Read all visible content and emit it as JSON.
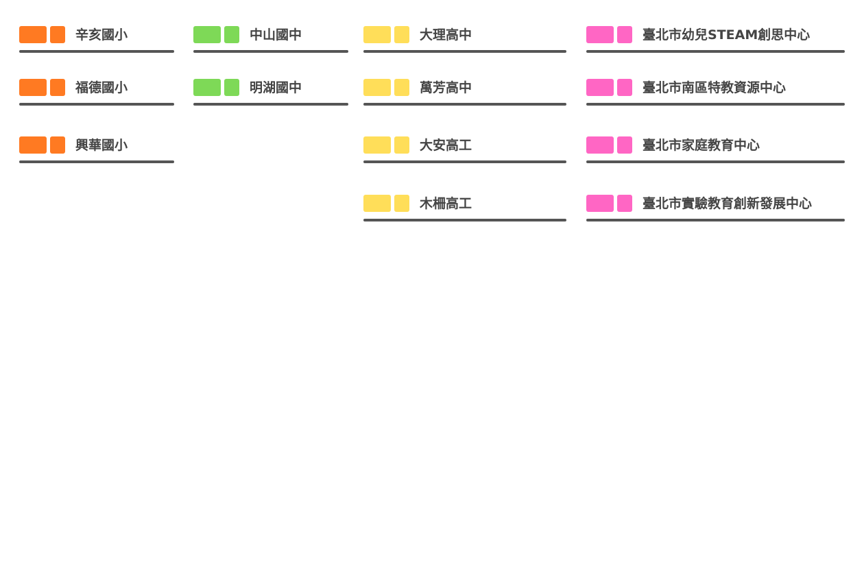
{
  "columns": [
    {
      "items": [
        "辛亥國小",
        "福德國小",
        "興華國小"
      ]
    },
    {
      "items": [
        "中山國中",
        "明湖國中"
      ]
    },
    {
      "items": [
        "大理高中",
        "萬芳高中",
        "大安高工",
        "木柵高工"
      ]
    },
    {
      "items": [
        "臺北市幼兒STEAM創思中心",
        "臺北市南區特教資源中心",
        "臺北市家庭教育中心",
        "臺北市實驗教育創新發展中心"
      ]
    }
  ]
}
